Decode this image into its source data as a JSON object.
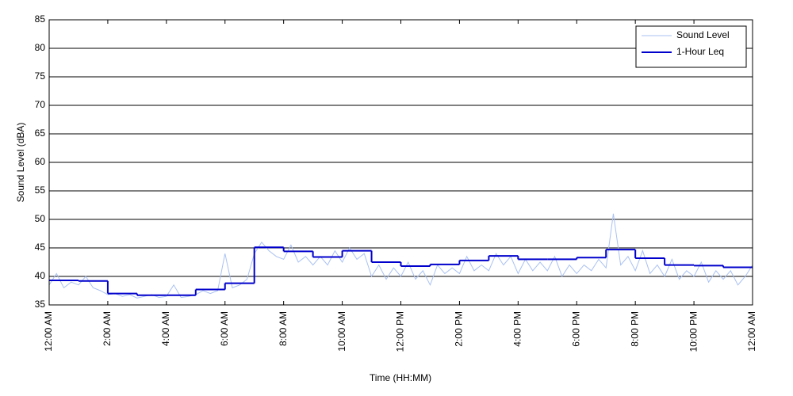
{
  "chart_data": {
    "type": "line",
    "y_label": "Sound Level (dBA)",
    "x_label": "Time (HH:MM)",
    "xlim": [
      0,
      24
    ],
    "ylim": [
      35,
      85
    ],
    "yticks": [
      35,
      40,
      45,
      50,
      55,
      60,
      65,
      70,
      75,
      80,
      85
    ],
    "xticks": [
      {
        "value": 0,
        "label": "12:00 AM"
      },
      {
        "value": 2,
        "label": "2:00 AM"
      },
      {
        "value": 4,
        "label": "4:00 AM"
      },
      {
        "value": 6,
        "label": "6:00 AM"
      },
      {
        "value": 8,
        "label": "8:00 AM"
      },
      {
        "value": 10,
        "label": "10:00 AM"
      },
      {
        "value": 12,
        "label": "12:00 PM"
      },
      {
        "value": 14,
        "label": "2:00 PM"
      },
      {
        "value": 16,
        "label": "4:00 PM"
      },
      {
        "value": 18,
        "label": "6:00 PM"
      },
      {
        "value": 20,
        "label": "8:00 PM"
      },
      {
        "value": 22,
        "label": "10:00 PM"
      },
      {
        "value": 24,
        "label": "12:00 AM"
      }
    ],
    "grid": true,
    "legend": "upper right",
    "series": [
      {
        "name": "Sound Level",
        "color": "#a9c1f2",
        "style": "line",
        "x": [
          0,
          0.25,
          0.5,
          0.75,
          1,
          1.25,
          1.5,
          1.75,
          2,
          2.25,
          2.5,
          2.75,
          3,
          3.25,
          3.5,
          3.75,
          4,
          4.25,
          4.5,
          4.75,
          5,
          5.25,
          5.5,
          5.75,
          6,
          6.25,
          6.5,
          6.75,
          7,
          7.25,
          7.5,
          7.75,
          8,
          8.25,
          8.5,
          8.75,
          9,
          9.25,
          9.5,
          9.75,
          10,
          10.25,
          10.5,
          10.75,
          11,
          11.25,
          11.5,
          11.75,
          12,
          12.25,
          12.5,
          12.75,
          13,
          13.25,
          13.5,
          13.75,
          14,
          14.25,
          14.5,
          14.75,
          15,
          15.25,
          15.5,
          15.75,
          16,
          16.25,
          16.5,
          16.75,
          17,
          17.25,
          17.5,
          17.75,
          18,
          18.25,
          18.5,
          18.75,
          19,
          19.25,
          19.5,
          19.75,
          20,
          20.25,
          20.5,
          20.75,
          21,
          21.25,
          21.5,
          21.75,
          22,
          22.25,
          22.5,
          22.75,
          23,
          23.25,
          23.5,
          23.75,
          24
        ],
        "values": [
          38.5,
          40.5,
          38,
          39,
          38.5,
          40,
          38,
          37.5,
          36.8,
          37,
          36.5,
          36.8,
          36.2,
          36.5,
          36.8,
          36.3,
          36.5,
          38.5,
          36.3,
          36.5,
          36.8,
          37.5,
          37,
          37.5,
          44,
          38,
          38.5,
          39.5,
          44,
          46,
          44.5,
          43.5,
          43,
          45.5,
          42.5,
          43.5,
          42,
          43.5,
          42,
          44.5,
          42.5,
          45,
          43,
          44,
          40,
          42,
          39.5,
          41.5,
          40,
          42.5,
          39.5,
          41,
          38.5,
          42,
          40.5,
          41.5,
          40.5,
          43.5,
          41,
          42,
          41,
          44,
          42,
          43.5,
          40.5,
          43,
          41,
          42.5,
          41,
          43.5,
          40,
          42,
          40.5,
          42,
          41,
          43,
          41.5,
          51,
          42,
          43.5,
          41,
          44.5,
          40.5,
          42,
          40,
          43,
          39.5,
          41,
          40,
          42.5,
          39,
          41,
          39.5,
          41,
          38.5,
          40,
          42
        ]
      },
      {
        "name": "1-Hour Leq",
        "color": "#0000cc",
        "style": "step",
        "x": [
          0,
          1,
          2,
          3,
          4,
          5,
          6,
          7,
          8,
          9,
          10,
          11,
          12,
          13,
          14,
          15,
          16,
          17,
          18,
          19,
          20,
          21,
          22,
          23
        ],
        "values": [
          39.3,
          39.2,
          37.0,
          36.7,
          36.7,
          37.7,
          38.8,
          45.1,
          44.4,
          43.4,
          44.5,
          42.5,
          41.8,
          42.1,
          42.8,
          43.6,
          43.0,
          43.0,
          43.3,
          44.7,
          43.2,
          42.0,
          41.9,
          41.6
        ]
      }
    ]
  }
}
